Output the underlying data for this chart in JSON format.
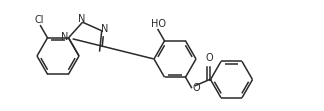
{
  "background_color": "#ffffff",
  "line_color": "#2a2a2a",
  "line_width": 1.1,
  "font_size": 7.0,
  "figsize": [
    3.24,
    1.11
  ],
  "dpi": 100,
  "xlim": [
    0,
    324
  ],
  "ylim": [
    0,
    111
  ]
}
